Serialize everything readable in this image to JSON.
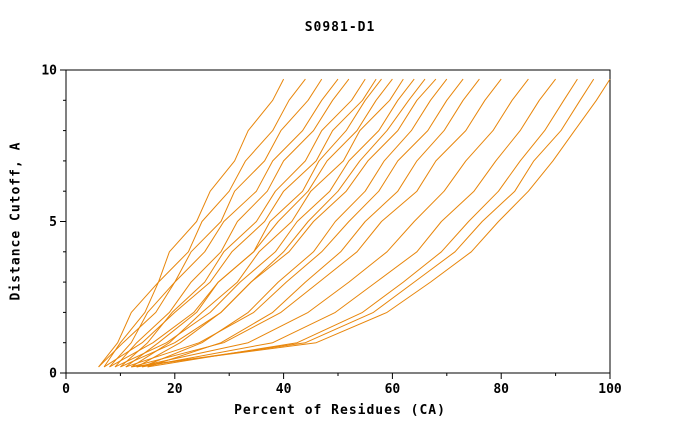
{
  "chart_data": {
    "type": "line",
    "title": "S0981-D1",
    "xlabel": "Percent of Residues (CA)",
    "ylabel": "Distance Cutoff, A",
    "xlim": [
      0,
      100
    ],
    "ylim": [
      0,
      10
    ],
    "x_major_ticks": [
      0,
      20,
      40,
      60,
      80,
      100
    ],
    "y_major_ticks": [
      0,
      5,
      10
    ],
    "x_minor_step": 10,
    "y_minor_step": 1,
    "line_color": "#e8860b",
    "frame_color": "#000000",
    "legend": "none",
    "grid": false,
    "y_levels": [
      0.2,
      1,
      2,
      3,
      4,
      5,
      6,
      7,
      8,
      9,
      9.7
    ],
    "series": [
      [
        6,
        9.5,
        12,
        17,
        19,
        24,
        26.5,
        31,
        33.5,
        38,
        40
      ],
      [
        7,
        10,
        14.5,
        17,
        22.5,
        25,
        30,
        33,
        38,
        41,
        44
      ],
      [
        8,
        12,
        15,
        20,
        23,
        28.5,
        31,
        36.5,
        39.5,
        44.5,
        47
      ],
      [
        6,
        10.5,
        16.5,
        20,
        25.5,
        29,
        35,
        38,
        43.5,
        47,
        50
      ],
      [
        9,
        13,
        19,
        23,
        28.5,
        31.5,
        37,
        40,
        45.5,
        49,
        52
      ],
      [
        10,
        15,
        19.5,
        25.5,
        29,
        35,
        38.5,
        44,
        47,
        52.5,
        55
      ],
      [
        7,
        14,
        20,
        26.5,
        30.5,
        36.5,
        40,
        46,
        49,
        54.5,
        57
      ],
      [
        11,
        17,
        24,
        28,
        34.5,
        37.5,
        43.5,
        46.5,
        51.5,
        55,
        58
      ],
      [
        8,
        16,
        23.5,
        28,
        34.5,
        39,
        44.5,
        48,
        53.5,
        57,
        60
      ],
      [
        12,
        19,
        25,
        31.5,
        35.5,
        41.5,
        45,
        51,
        54,
        59.5,
        62
      ],
      [
        9,
        18.5,
        26.5,
        32,
        38.5,
        42.5,
        48.5,
        52,
        57.5,
        61,
        64
      ],
      [
        13,
        21,
        28.5,
        34,
        40,
        44.5,
        50,
        54,
        59,
        63,
        66
      ],
      [
        10,
        20,
        28.5,
        34,
        41,
        45.5,
        51.5,
        55.5,
        61,
        64.5,
        68
      ],
      [
        14,
        25,
        33.5,
        39,
        45.5,
        49.5,
        55,
        58.5,
        63.5,
        67,
        70
      ],
      [
        11,
        24.5,
        34.5,
        40.5,
        47,
        52,
        57.5,
        61,
        66.5,
        70,
        73
      ],
      [
        15,
        28.5,
        38,
        44,
        50.5,
        55,
        61,
        64.5,
        69.5,
        73,
        76
      ],
      [
        12,
        29,
        39.5,
        46.5,
        53.5,
        58,
        64.5,
        68,
        73.5,
        77,
        80
      ],
      [
        13,
        33.5,
        44.5,
        52,
        59,
        64,
        69.5,
        73.5,
        78.5,
        82,
        85
      ],
      [
        14,
        38,
        49.5,
        57,
        64.5,
        69,
        75,
        79,
        83.5,
        87,
        90
      ],
      [
        15,
        42.5,
        54.5,
        62,
        69,
        74,
        79.5,
        83.5,
        88,
        91.5,
        94
      ],
      [
        13,
        44,
        56.5,
        64,
        71.5,
        76.5,
        82.5,
        86,
        91,
        94.5,
        97
      ],
      [
        12,
        46,
        59,
        67,
        74.5,
        79.5,
        85,
        89.5,
        93.5,
        97.5,
        100
      ]
    ]
  }
}
